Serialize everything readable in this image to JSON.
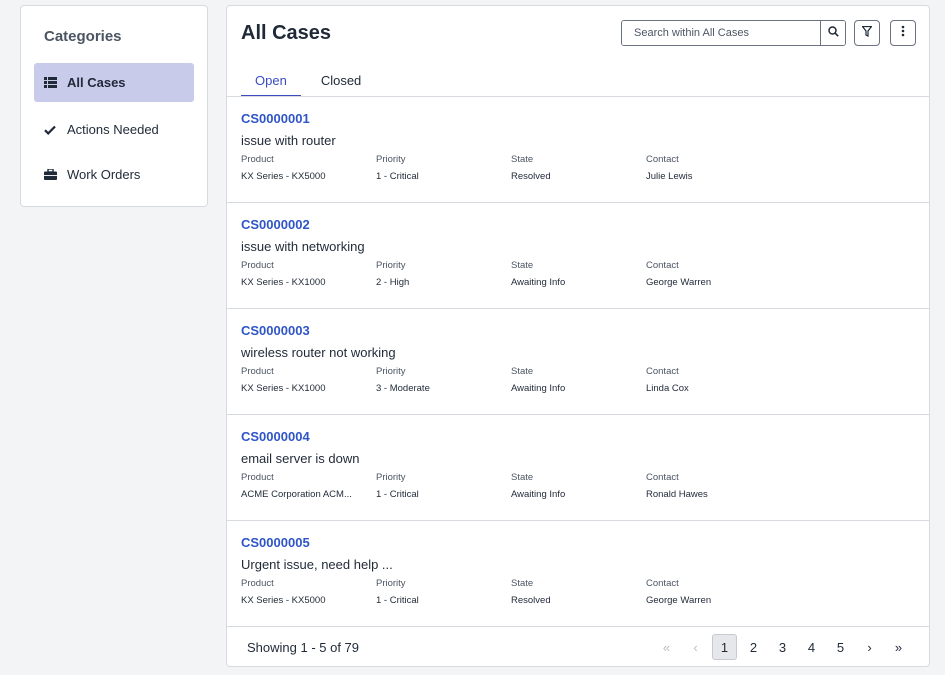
{
  "sidebar": {
    "title": "Categories",
    "items": [
      {
        "label": "All Cases",
        "icon": "list-icon",
        "active": true
      },
      {
        "label": "Actions Needed",
        "icon": "checkmark-icon",
        "active": false
      },
      {
        "label": "Work Orders",
        "icon": "briefcase-icon",
        "active": false
      }
    ]
  },
  "main": {
    "title": "All Cases",
    "search": {
      "placeholder": "Search within All Cases",
      "value": ""
    },
    "tabs": [
      {
        "label": "Open",
        "active": true
      },
      {
        "label": "Closed",
        "active": false
      }
    ],
    "field_labels": {
      "product": "Product",
      "priority": "Priority",
      "state": "State",
      "contact": "Contact"
    },
    "cases": [
      {
        "id": "CS0000001",
        "description": "issue with router",
        "product": "KX Series - KX5000",
        "priority": "1 - Critical",
        "state": "Resolved",
        "contact": "Julie Lewis"
      },
      {
        "id": "CS0000002",
        "description": "issue with networking",
        "product": "KX Series - KX1000",
        "priority": "2 - High",
        "state": "Awaiting Info",
        "contact": "George Warren"
      },
      {
        "id": "CS0000003",
        "description": "wireless router not working",
        "product": "KX Series - KX1000",
        "priority": "3 - Moderate",
        "state": "Awaiting Info",
        "contact": "Linda Cox"
      },
      {
        "id": "CS0000004",
        "description": "email server is down",
        "product": "ACME Corporation ACM...",
        "priority": "1 - Critical",
        "state": "Awaiting Info",
        "contact": "Ronald Hawes"
      },
      {
        "id": "CS0000005",
        "description": "Urgent issue, need help ...",
        "product": "KX Series - KX5000",
        "priority": "1 - Critical",
        "state": "Resolved",
        "contact": "George Warren"
      }
    ],
    "footer": {
      "showing": "Showing 1 - 5 of 79",
      "pages": [
        "1",
        "2",
        "3",
        "4",
        "5"
      ],
      "current_page": "1",
      "first": "«",
      "prev": "‹",
      "next": "›",
      "last": "»"
    }
  },
  "colors": {
    "accent": "#3b4cc0",
    "link": "#2f55c7",
    "active_bg": "#c9cbea"
  }
}
